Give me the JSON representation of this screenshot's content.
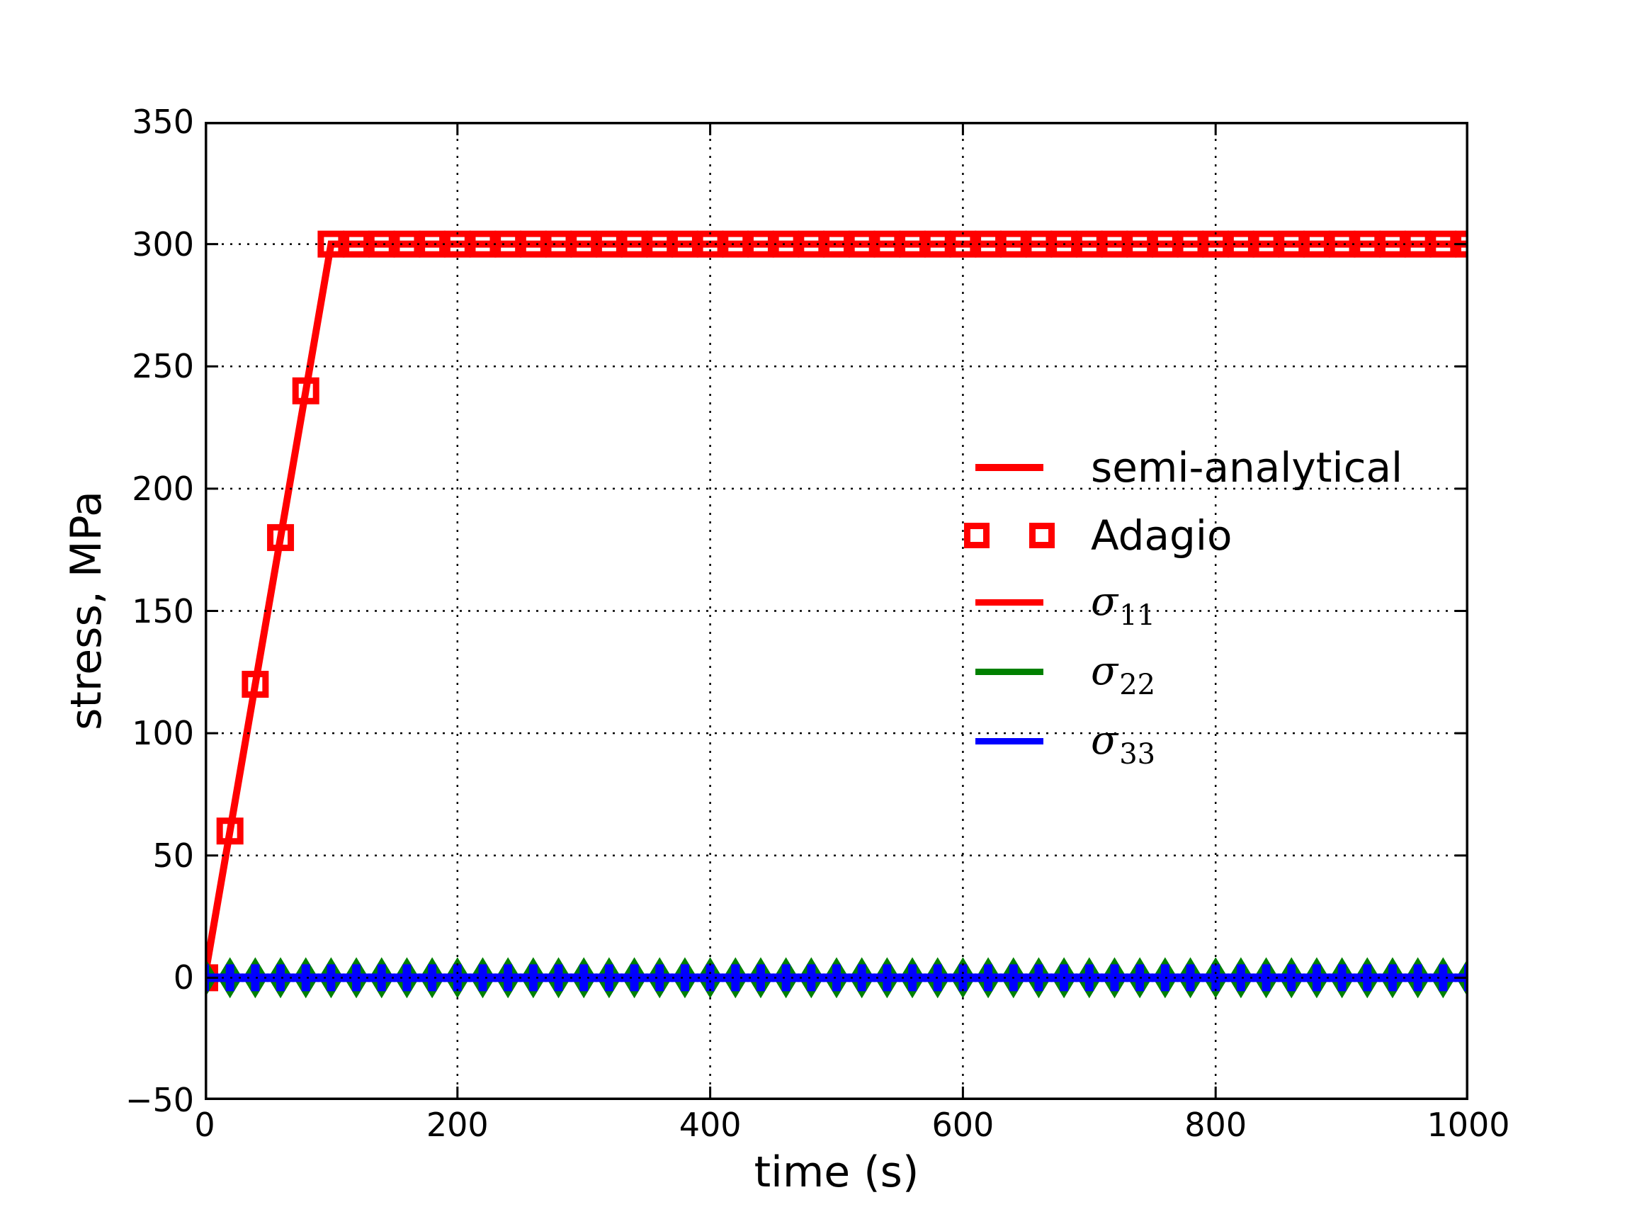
{
  "figure": {
    "background": "#ffffff"
  },
  "axes": {
    "xlim": [
      0,
      1000
    ],
    "ylim": [
      -50,
      350
    ],
    "xticks": [
      0,
      200,
      400,
      600,
      800,
      1000
    ],
    "yticks": [
      -50,
      0,
      50,
      100,
      150,
      200,
      250,
      300,
      350
    ],
    "x_gridlines": [
      200,
      400,
      600,
      800
    ],
    "y_gridlines": [
      0,
      50,
      100,
      150,
      200,
      250,
      300
    ],
    "grid_style": "dotted",
    "grid_color": "#000000",
    "tick_direction": "in",
    "spine_color": "#000000"
  },
  "legend": {
    "frame": false,
    "entries": [
      {
        "id": "semi-analytical",
        "label": "semi-analytical",
        "handle": "line",
        "color": "#ff0000"
      },
      {
        "id": "adagio",
        "label": "Adagio",
        "handle": "squares",
        "color": "#ff0000"
      },
      {
        "id": "sigma11",
        "label": "σ11",
        "label_base": "σ",
        "label_sub": "11",
        "handle": "line",
        "color": "#ff0000"
      },
      {
        "id": "sigma22",
        "label": "σ22",
        "label_base": "σ",
        "label_sub": "22",
        "handle": "line",
        "color": "#008000"
      },
      {
        "id": "sigma33",
        "label": "σ33",
        "label_base": "σ",
        "label_sub": "33",
        "handle": "line",
        "color": "#0000ff"
      }
    ]
  },
  "chart_data": {
    "type": "line",
    "title": "",
    "xlabel": "time (s)",
    "ylabel": "stress, MPa",
    "xlim": [
      0,
      1000
    ],
    "ylim": [
      -50,
      350
    ],
    "grid": true,
    "grid_above_data": true,
    "legend_position": "center-right",
    "marker_interval_s": 20,
    "x": [
      0,
      20,
      40,
      60,
      80,
      100,
      120,
      140,
      160,
      180,
      200,
      220,
      240,
      260,
      280,
      300,
      320,
      340,
      360,
      380,
      400,
      420,
      440,
      460,
      480,
      500,
      520,
      540,
      560,
      580,
      600,
      620,
      640,
      660,
      680,
      700,
      720,
      740,
      760,
      780,
      800,
      820,
      840,
      860,
      880,
      900,
      920,
      940,
      960,
      980,
      1000
    ],
    "series": [
      {
        "name": "sigma11 (semi-analytical line + Adagio square markers)",
        "color": "#ff0000",
        "line_vertices": [
          [
            0,
            0
          ],
          [
            100,
            300
          ],
          [
            1000,
            300
          ]
        ],
        "marker": "open-square",
        "y": [
          0,
          60,
          120,
          180,
          240,
          300,
          300,
          300,
          300,
          300,
          300,
          300,
          300,
          300,
          300,
          300,
          300,
          300,
          300,
          300,
          300,
          300,
          300,
          300,
          300,
          300,
          300,
          300,
          300,
          300,
          300,
          300,
          300,
          300,
          300,
          300,
          300,
          300,
          300,
          300,
          300,
          300,
          300,
          300,
          300,
          300,
          300,
          300,
          300,
          300,
          300
        ]
      },
      {
        "name": "sigma22",
        "color": "#008000",
        "line_vertices": [
          [
            0,
            0
          ],
          [
            1000,
            0
          ]
        ],
        "marker": "thin-diamond",
        "y": [
          0,
          0,
          0,
          0,
          0,
          0,
          0,
          0,
          0,
          0,
          0,
          0,
          0,
          0,
          0,
          0,
          0,
          0,
          0,
          0,
          0,
          0,
          0,
          0,
          0,
          0,
          0,
          0,
          0,
          0,
          0,
          0,
          0,
          0,
          0,
          0,
          0,
          0,
          0,
          0,
          0,
          0,
          0,
          0,
          0,
          0,
          0,
          0,
          0,
          0,
          0
        ]
      },
      {
        "name": "sigma33",
        "color": "#0000ff",
        "line_vertices": [
          [
            0,
            0
          ],
          [
            1000,
            0
          ]
        ],
        "marker": "plus",
        "y": [
          0,
          0,
          0,
          0,
          0,
          0,
          0,
          0,
          0,
          0,
          0,
          0,
          0,
          0,
          0,
          0,
          0,
          0,
          0,
          0,
          0,
          0,
          0,
          0,
          0,
          0,
          0,
          0,
          0,
          0,
          0,
          0,
          0,
          0,
          0,
          0,
          0,
          0,
          0,
          0,
          0,
          0,
          0,
          0,
          0,
          0,
          0,
          0,
          0,
          0,
          0
        ]
      }
    ]
  }
}
